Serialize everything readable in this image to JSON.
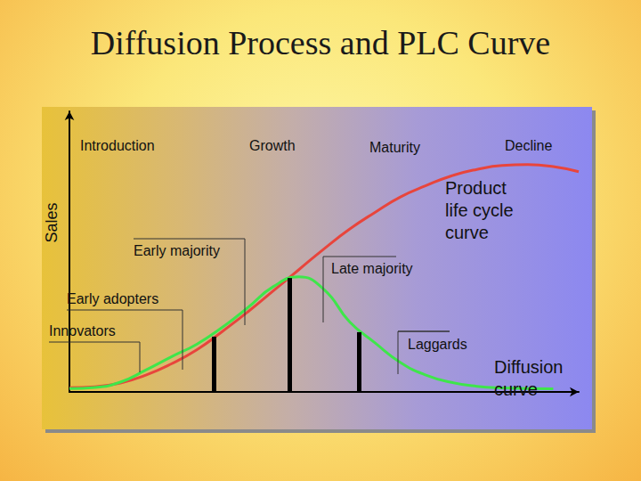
{
  "chart_data": {
    "type": "line",
    "title": "Diffusion Process and PLC Curve",
    "y_label": "Sales",
    "stages": [
      "Introduction",
      "Growth",
      "Maturity",
      "Decline"
    ],
    "adopter_categories": [
      "Innovators",
      "Early adopters",
      "Early majority",
      "Late majority",
      "Laggards"
    ],
    "x": [
      0,
      5,
      10,
      15,
      20,
      25,
      30,
      35,
      40,
      45,
      50,
      55,
      60,
      65,
      70,
      75,
      80,
      85,
      90,
      95,
      100
    ],
    "series": [
      {
        "name": "Product life cycle curve",
        "color": "#e8453c",
        "values": [
          1.5,
          1.8,
          3.2,
          6,
          10,
          15,
          21.5,
          28.5,
          36,
          43.5,
          51,
          58,
          64,
          69.5,
          73.5,
          77,
          79.3,
          80.7,
          81,
          80.3,
          78.5
        ]
      },
      {
        "name": "Diffusion curve",
        "color": "#3ee64a",
        "values": [
          1.2,
          1.6,
          3.5,
          7.8,
          12.5,
          17,
          23,
          30,
          37.5,
          41,
          36.5,
          25,
          17.5,
          10.5,
          6,
          3.4,
          2,
          1.4,
          1.2,
          1.1,
          null
        ]
      }
    ],
    "dividers": [
      {
        "x": 28.3,
        "y": 19.7
      },
      {
        "x": 43.2,
        "y": 40.6
      },
      {
        "x": 56.8,
        "y": 21.3
      }
    ],
    "xlim": [
      0,
      100
    ],
    "ylim": [
      0,
      100
    ],
    "tick_labels": false,
    "grid": false
  }
}
